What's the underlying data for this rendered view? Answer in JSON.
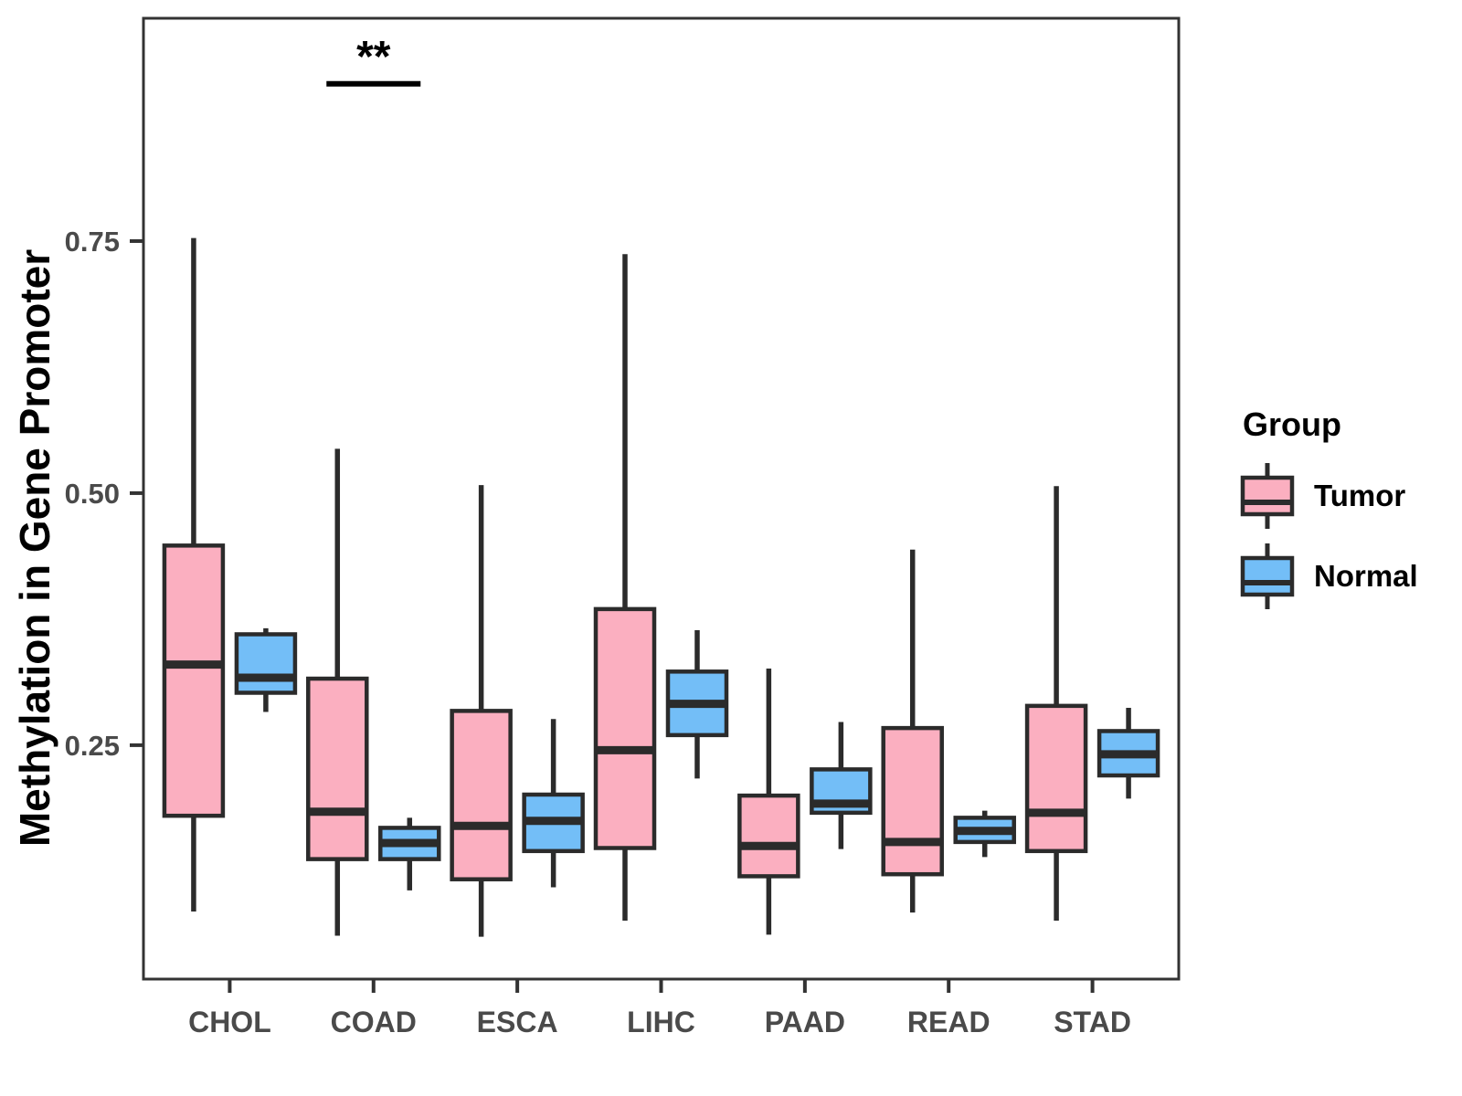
{
  "chart_data": {
    "type": "boxplot",
    "title": "",
    "xlabel": "",
    "ylabel": "Methylation in Gene Promoter",
    "categories": [
      "CHOL",
      "COAD",
      "ESCA",
      "LIHC",
      "PAAD",
      "READ",
      "STAD"
    ],
    "series": [
      {
        "name": "Tumor",
        "color": "#FBAFC0",
        "boxes": [
          {
            "category": "CHOL",
            "whisker_low": 0.085,
            "q1": 0.18,
            "median": 0.33,
            "q3": 0.448,
            "whisker_high": 0.753
          },
          {
            "category": "COAD",
            "whisker_low": 0.061,
            "q1": 0.137,
            "median": 0.184,
            "q3": 0.316,
            "whisker_high": 0.544
          },
          {
            "category": "ESCA",
            "whisker_low": 0.06,
            "q1": 0.117,
            "median": 0.17,
            "q3": 0.284,
            "whisker_high": 0.508
          },
          {
            "category": "LIHC",
            "whisker_low": 0.076,
            "q1": 0.148,
            "median": 0.245,
            "q3": 0.385,
            "whisker_high": 0.737
          },
          {
            "category": "PAAD",
            "whisker_low": 0.062,
            "q1": 0.12,
            "median": 0.15,
            "q3": 0.2,
            "whisker_high": 0.326
          },
          {
            "category": "READ",
            "whisker_low": 0.084,
            "q1": 0.122,
            "median": 0.154,
            "q3": 0.267,
            "whisker_high": 0.444
          },
          {
            "category": "STAD",
            "whisker_low": 0.076,
            "q1": 0.145,
            "median": 0.183,
            "q3": 0.289,
            "whisker_high": 0.507
          }
        ]
      },
      {
        "name": "Normal",
        "color": "#73BEF7",
        "boxes": [
          {
            "category": "CHOL",
            "whisker_low": 0.283,
            "q1": 0.302,
            "median": 0.317,
            "q3": 0.36,
            "whisker_high": 0.366
          },
          {
            "category": "COAD",
            "whisker_low": 0.106,
            "q1": 0.137,
            "median": 0.153,
            "q3": 0.168,
            "whisker_high": 0.178
          },
          {
            "category": "ESCA",
            "whisker_low": 0.109,
            "q1": 0.145,
            "median": 0.175,
            "q3": 0.201,
            "whisker_high": 0.276
          },
          {
            "category": "LIHC",
            "whisker_low": 0.217,
            "q1": 0.26,
            "median": 0.291,
            "q3": 0.323,
            "whisker_high": 0.364
          },
          {
            "category": "PAAD",
            "whisker_low": 0.147,
            "q1": 0.183,
            "median": 0.192,
            "q3": 0.226,
            "whisker_high": 0.273
          },
          {
            "category": "READ",
            "whisker_low": 0.139,
            "q1": 0.154,
            "median": 0.165,
            "q3": 0.178,
            "whisker_high": 0.185
          },
          {
            "category": "STAD",
            "whisker_low": 0.197,
            "q1": 0.22,
            "median": 0.241,
            "q3": 0.264,
            "whisker_high": 0.287
          }
        ]
      }
    ],
    "yticks": [
      {
        "value": 0.25,
        "label": "0.25"
      },
      {
        "value": 0.5,
        "label": "0.50"
      },
      {
        "value": 0.75,
        "label": "0.75"
      }
    ],
    "ylim": [
      0.018,
      0.971
    ],
    "grid": false,
    "legend": {
      "title": "Group",
      "position": "right"
    },
    "annotations": [
      {
        "text": "**",
        "category": "COAD",
        "bar_y": 0.906,
        "text_y": 0.925
      }
    ]
  }
}
